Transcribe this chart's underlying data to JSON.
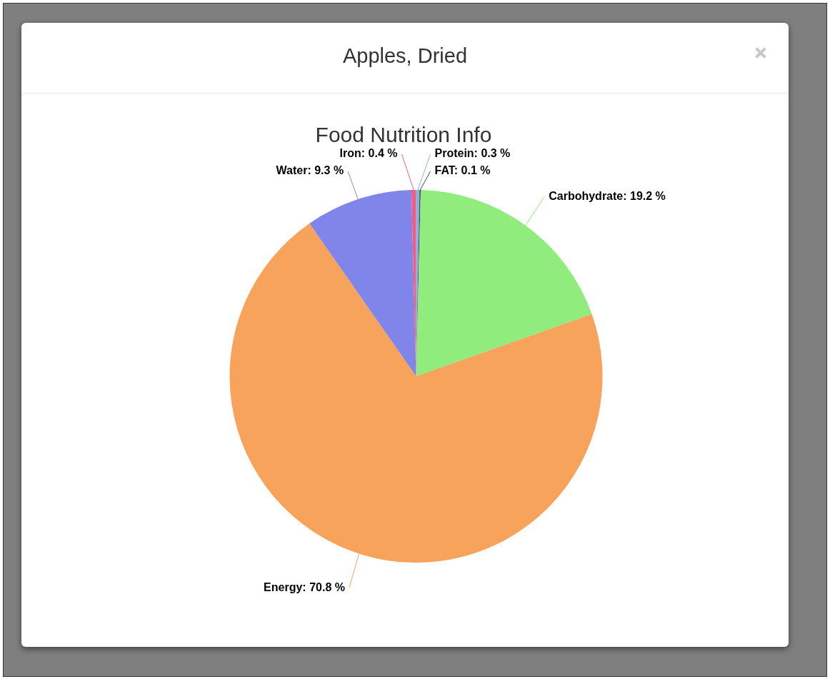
{
  "chart_data": {
    "type": "pie",
    "title": "Apples, Dried",
    "subtitle": "Food Nutrition Info",
    "categories": [
      "Protein",
      "FAT",
      "Carbohydrate",
      "Energy",
      "Water",
      "Iron"
    ],
    "values": [
      0.3,
      0.1,
      19.2,
      70.8,
      9.3,
      0.4
    ],
    "colors": [
      "#7cb5ec",
      "#434348",
      "#90ed7d",
      "#f7a35c",
      "#8085e9",
      "#f15c80"
    ],
    "value_labels": [
      "0.3 %",
      "0.1 %",
      "19.2 %",
      "70.8 %",
      "9.3 %",
      "0.4 %"
    ],
    "legend": false
  }
}
